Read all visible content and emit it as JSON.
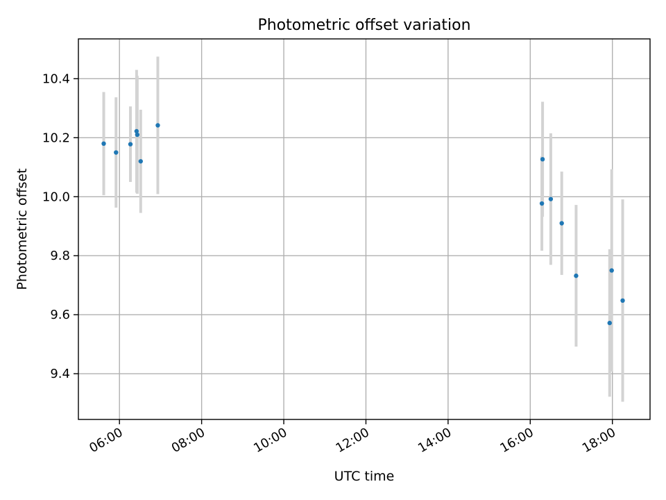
{
  "chart_data": {
    "type": "scatter",
    "title": "Photometric offset variation",
    "xlabel": "UTC time",
    "ylabel": "Photometric offset",
    "x_ticks": [
      "06:00",
      "08:00",
      "10:00",
      "12:00",
      "14:00",
      "16:00",
      "18:00"
    ],
    "y_ticks": [
      "9.4",
      "9.6",
      "9.8",
      "10.0",
      "10.2",
      "10.4"
    ],
    "xlim": [
      "05:00",
      "18:55"
    ],
    "ylim": [
      9.245,
      10.535
    ],
    "grid": true,
    "colors": {
      "marker": "#1f77b4",
      "errorbar": "#d3d3d3"
    },
    "points": [
      {
        "x": "05:37",
        "y": 10.18,
        "yerr": 0.175
      },
      {
        "x": "05:55",
        "y": 10.15,
        "yerr": 0.187
      },
      {
        "x": "06:16",
        "y": 10.178,
        "yerr": 0.128
      },
      {
        "x": "06:25",
        "y": 10.222,
        "yerr": 0.208
      },
      {
        "x": "06:26",
        "y": 10.21,
        "yerr": 0.2
      },
      {
        "x": "06:31",
        "y": 10.12,
        "yerr": 0.175
      },
      {
        "x": "06:56",
        "y": 10.242,
        "yerr": 0.233
      },
      {
        "x": "16:17",
        "y": 9.977,
        "yerr": 0.16
      },
      {
        "x": "16:18",
        "y": 10.127,
        "yerr": 0.195
      },
      {
        "x": "16:30",
        "y": 9.992,
        "yerr": 0.223
      },
      {
        "x": "16:46",
        "y": 9.91,
        "yerr": 0.175
      },
      {
        "x": "17:07",
        "y": 9.732,
        "yerr": 0.24
      },
      {
        "x": "17:56",
        "y": 9.572,
        "yerr": 0.25
      },
      {
        "x": "17:59",
        "y": 9.75,
        "yerr": 0.343
      },
      {
        "x": "18:15",
        "y": 9.648,
        "yerr": 0.343
      }
    ]
  }
}
